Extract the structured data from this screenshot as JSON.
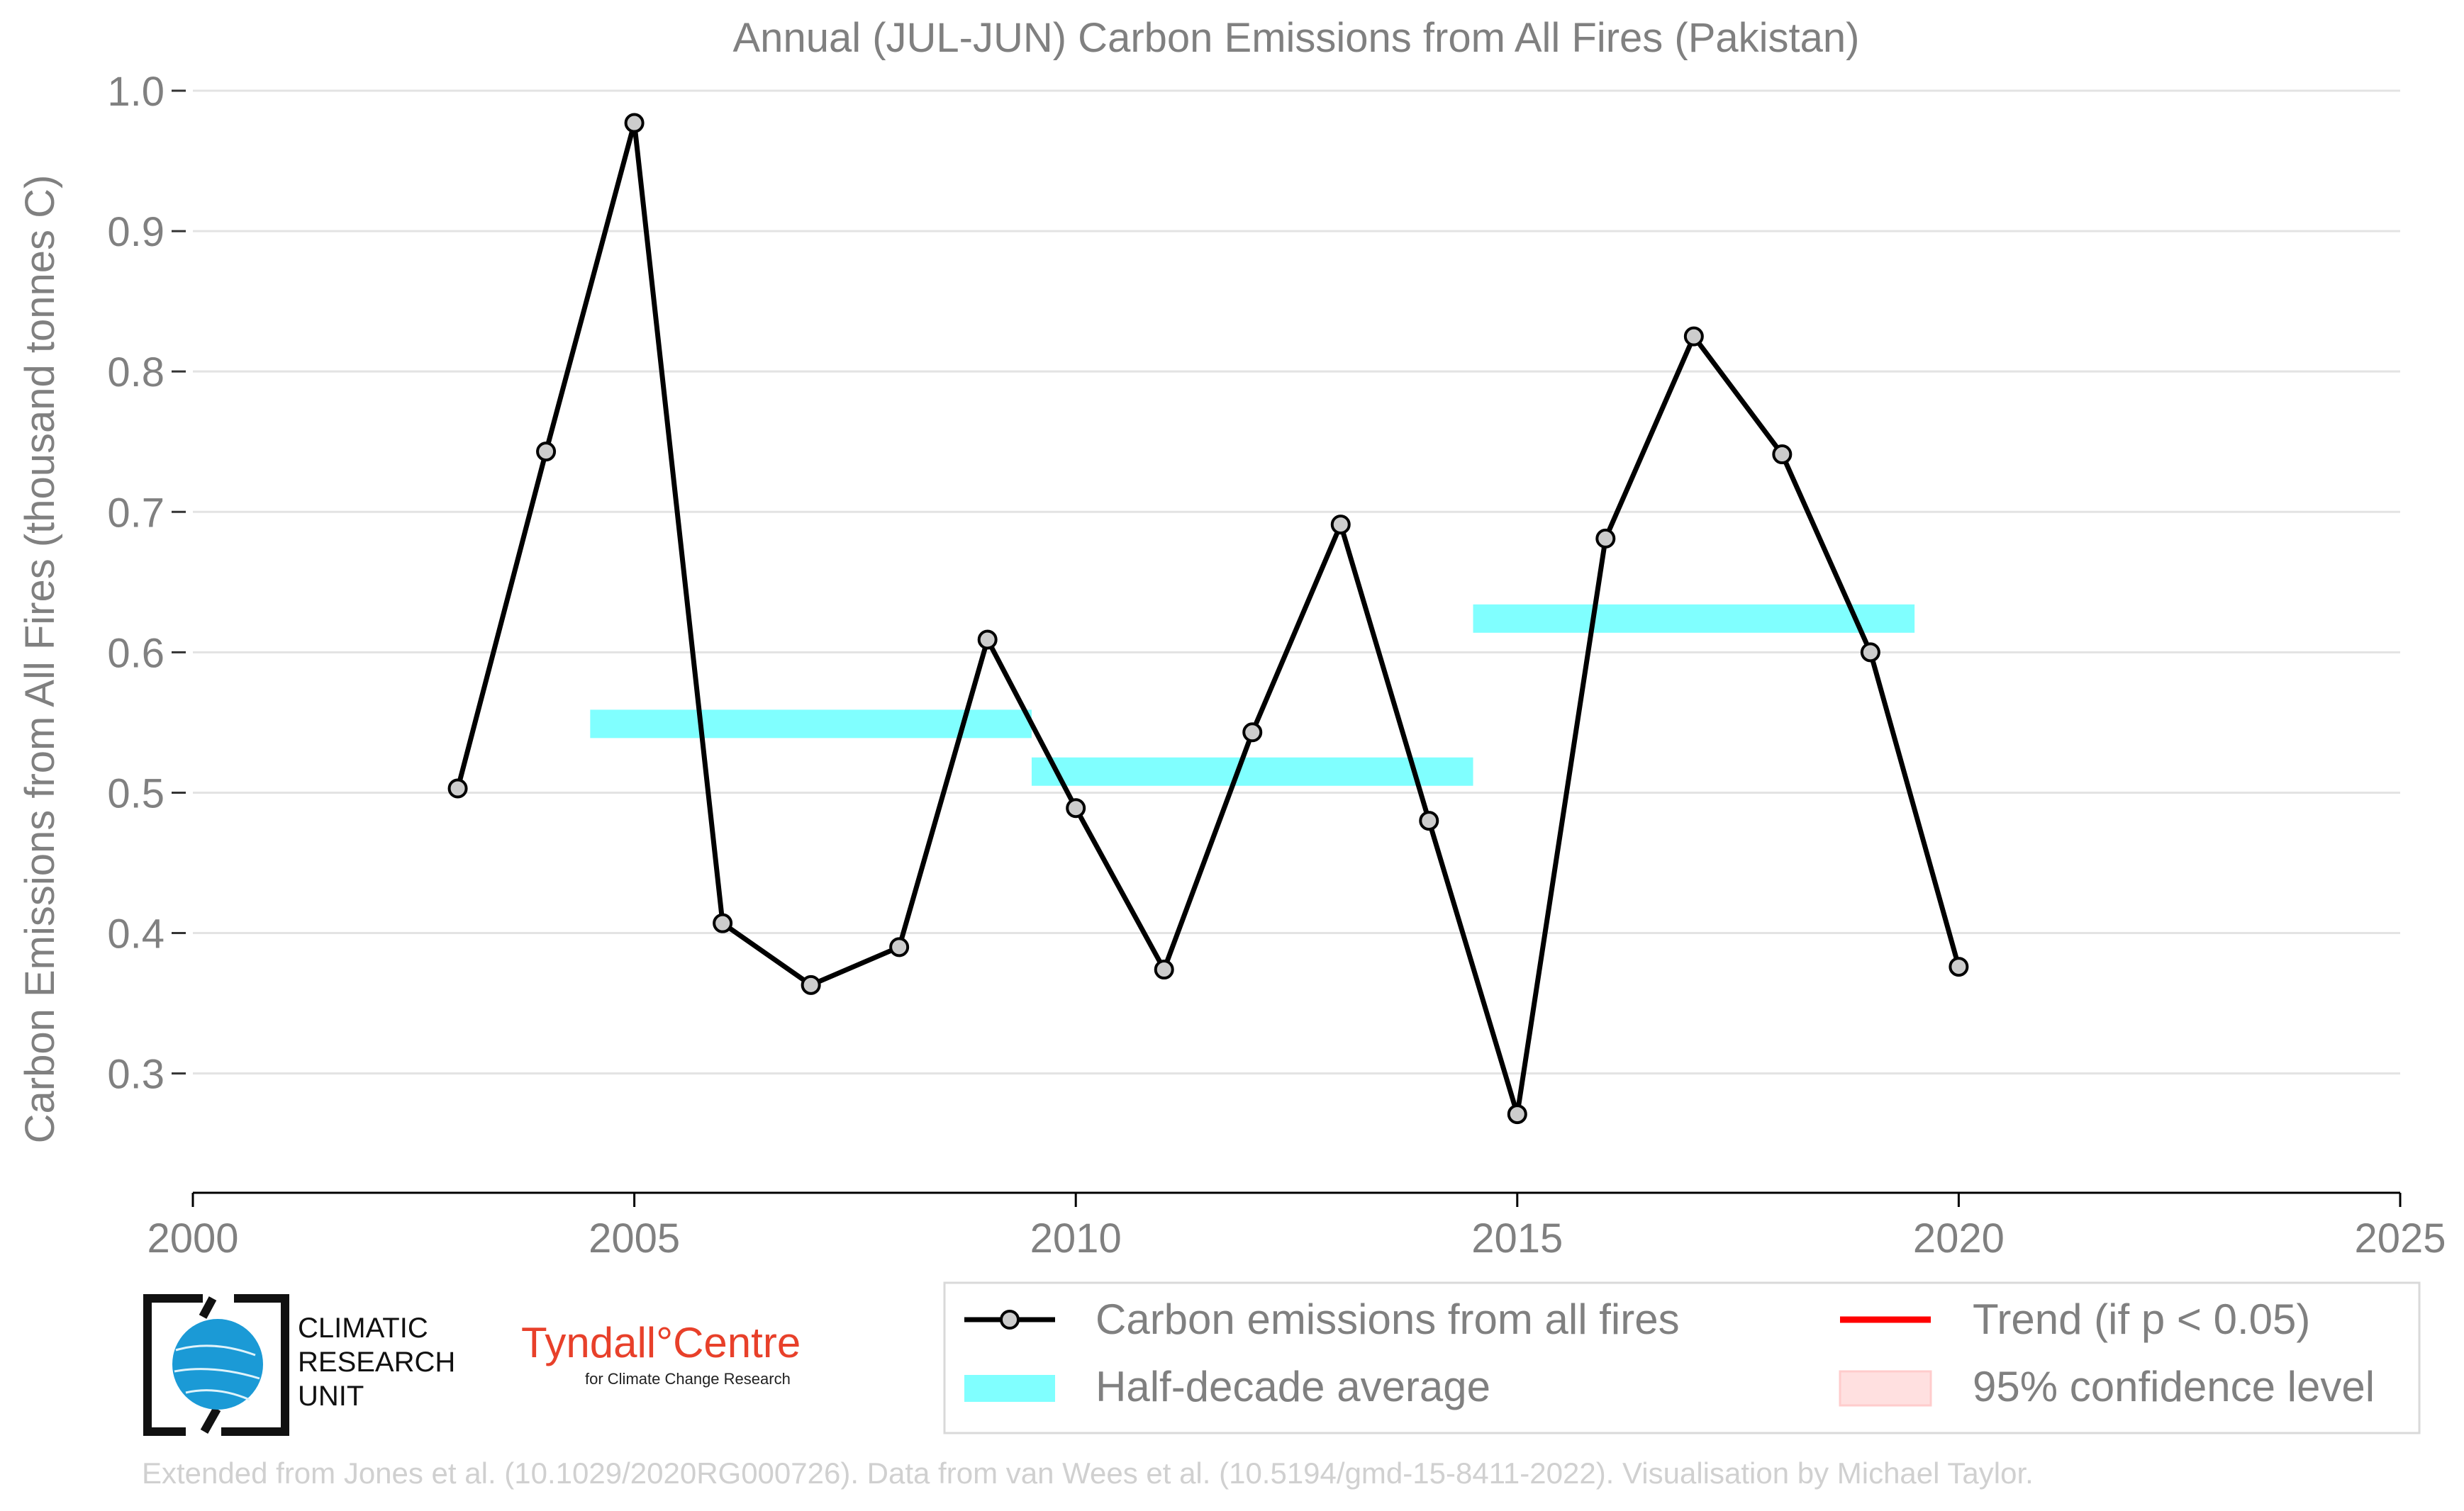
{
  "chart_data": {
    "type": "line",
    "title": "Annual (JUL-JUN) Carbon Emissions from All Fires (Pakistan)",
    "xlabel": "",
    "ylabel": "Carbon Emissions from All Fires (thousand tonnes C)",
    "xlim": [
      2000,
      2025
    ],
    "ylim": [
      0.215,
      1.0
    ],
    "xticks": [
      "2000",
      "2005",
      "2010",
      "2015",
      "2020",
      "2025"
    ],
    "yticks": [
      "0.3",
      "0.4",
      "0.5",
      "0.6",
      "0.7",
      "0.8",
      "0.9",
      "1.0"
    ],
    "grid": "horizontal",
    "series": [
      {
        "name": "Carbon emissions from all fires",
        "color": "#000000",
        "x": [
          2003,
          2004,
          2005,
          2006,
          2007,
          2008,
          2009,
          2010,
          2011,
          2012,
          2013,
          2014,
          2015,
          2016,
          2017,
          2018,
          2019,
          2020
        ],
        "y": [
          0.503,
          0.743,
          0.977,
          0.407,
          0.363,
          0.39,
          0.609,
          0.489,
          0.374,
          0.543,
          0.691,
          0.48,
          0.271,
          0.681,
          0.825,
          0.741,
          0.6,
          0.376
        ]
      }
    ],
    "half_decade_average": {
      "name": "Half-decade average",
      "color": "#80ffff",
      "segments": [
        {
          "x0": 2004.5,
          "x1": 2009.5,
          "y": 0.549
        },
        {
          "x0": 2009.5,
          "x1": 2014.5,
          "y": 0.515
        },
        {
          "x0": 2014.5,
          "x1": 2019.5,
          "y": 0.624
        }
      ]
    },
    "legend": {
      "placement": "bottom-right",
      "entries": [
        {
          "label": "Carbon emissions from all fires",
          "kind": "line-marker",
          "color": "#000000"
        },
        {
          "label": "Trend (if p < 0.05)",
          "kind": "line",
          "color": "#ff0000"
        },
        {
          "label": "Half-decade average",
          "kind": "band",
          "color": "#80ffff"
        },
        {
          "label": "95% confidence level",
          "kind": "patch",
          "color": "#ffe0e0"
        }
      ]
    }
  },
  "logos": {
    "cru": [
      "CLIMATIC",
      "RESEARCH",
      "UNIT"
    ],
    "tyndall_main": "Tyndall°Centre",
    "tyndall_sub": "for Climate Change Research"
  },
  "credit": "Extended from Jones et al. (10.1029/2020RG000726). Data from van Wees et al. (10.5194/gmd-15-8411-2022). Visualisation by Michael Taylor."
}
